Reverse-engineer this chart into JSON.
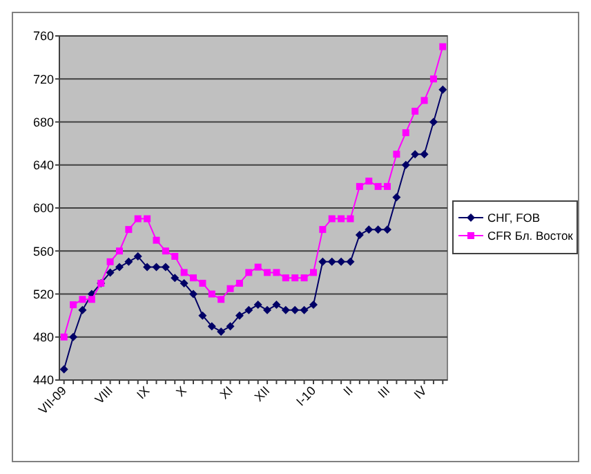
{
  "chart_data": {
    "type": "line",
    "categories": [
      "VII-09",
      null,
      null,
      null,
      null,
      "VIII",
      null,
      null,
      null,
      "IX",
      null,
      null,
      null,
      "X",
      null,
      null,
      null,
      null,
      "XI",
      null,
      null,
      null,
      "XII",
      null,
      null,
      null,
      null,
      "I-10",
      null,
      null,
      null,
      "II",
      null,
      null,
      null,
      "III",
      null,
      null,
      null,
      "IV",
      null,
      null
    ],
    "series": [
      {
        "name": "СНГ, FOB",
        "color": "#000066",
        "marker": "diamond",
        "values": [
          450,
          480,
          505,
          520,
          530,
          540,
          545,
          550,
          555,
          545,
          545,
          545,
          535,
          530,
          520,
          500,
          490,
          485,
          490,
          500,
          505,
          510,
          505,
          510,
          505,
          505,
          505,
          510,
          550,
          550,
          550,
          550,
          575,
          580,
          580,
          580,
          610,
          640,
          650,
          650,
          680,
          710
        ]
      },
      {
        "name": "CFR Бл. Восток",
        "color": "#ff00ff",
        "marker": "square",
        "values": [
          480,
          510,
          515,
          515,
          530,
          550,
          560,
          580,
          590,
          590,
          570,
          560,
          555,
          540,
          535,
          530,
          520,
          515,
          525,
          530,
          540,
          545,
          540,
          540,
          535,
          535,
          535,
          540,
          580,
          590,
          590,
          590,
          620,
          625,
          620,
          620,
          650,
          670,
          690,
          700,
          720,
          750
        ]
      }
    ],
    "ylim": [
      440,
      760
    ],
    "yticks": [
      440,
      480,
      520,
      560,
      600,
      640,
      680,
      720,
      760
    ],
    "grid": "y",
    "legend": "right"
  }
}
